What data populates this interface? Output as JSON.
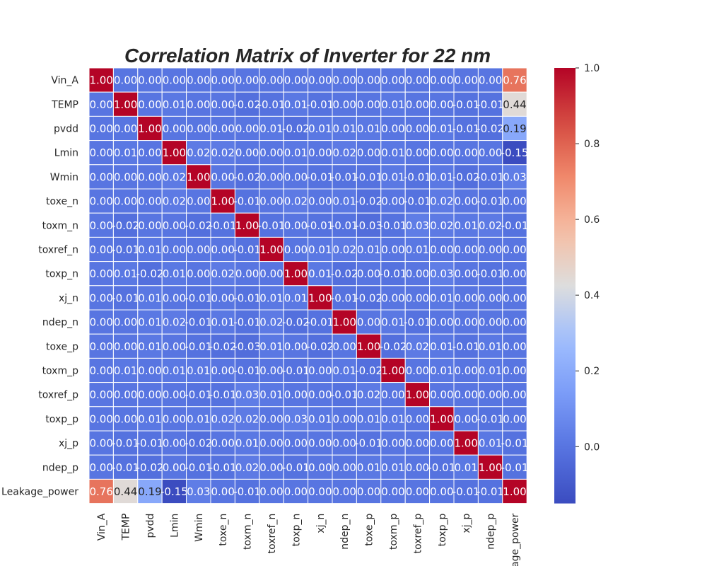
{
  "chart_data": {
    "type": "heatmap",
    "title": "Correlation Matrix of Inverter for 22 nm",
    "row_labels": [
      "Vin_A",
      "TEMP",
      "pvdd",
      "Lmin",
      "Wmin",
      "toxe_n",
      "toxm_n",
      "toxref_n",
      "toxp_n",
      "xj_n",
      "ndep_n",
      "toxe_p",
      "toxm_p",
      "toxref_p",
      "toxp_p",
      "xj_p",
      "ndep_p",
      "Leakage_power"
    ],
    "col_labels": [
      "Vin_A",
      "TEMP",
      "pvdd",
      "Lmin",
      "Wmin",
      "toxe_n",
      "toxm_n",
      "toxref_n",
      "toxp_n",
      "xj_n",
      "ndep_n",
      "toxe_p",
      "toxm_p",
      "toxref_p",
      "toxp_p",
      "xj_p",
      "ndep_p",
      "Leakage_power"
    ],
    "values": [
      [
        1.0,
        0.0,
        0.0,
        0.0,
        0.0,
        0.0,
        0.0,
        0.0,
        0.0,
        0.0,
        0.0,
        0.0,
        0.0,
        0.0,
        0.0,
        0.0,
        0.0,
        0.76
      ],
      [
        0.0,
        1.0,
        0.0,
        0.01,
        0.0,
        0.0,
        -0.02,
        -0.01,
        0.01,
        -0.01,
        0.0,
        0.0,
        0.01,
        0.0,
        0.0,
        -0.01,
        -0.01,
        0.44
      ],
      [
        0.0,
        0.0,
        1.0,
        0.0,
        0.0,
        0.0,
        0.0,
        0.01,
        -0.02,
        0.01,
        0.01,
        0.01,
        0.0,
        0.0,
        0.01,
        -0.01,
        -0.02,
        0.19
      ],
      [
        0.0,
        0.01,
        0.0,
        1.0,
        0.02,
        0.02,
        0.0,
        0.0,
        0.01,
        0.0,
        0.02,
        0.0,
        0.01,
        0.0,
        0.0,
        0.0,
        0.0,
        -0.15
      ],
      [
        0.0,
        0.0,
        0.0,
        0.02,
        1.0,
        0.0,
        -0.02,
        0.0,
        0.0,
        -0.01,
        -0.01,
        -0.01,
        0.01,
        -0.01,
        0.01,
        -0.02,
        -0.01,
        0.03
      ],
      [
        0.0,
        0.0,
        0.0,
        0.02,
        0.0,
        1.0,
        -0.01,
        0.0,
        0.02,
        0.0,
        0.01,
        -0.02,
        0.0,
        -0.01,
        0.02,
        0.0,
        -0.01,
        0.0
      ],
      [
        0.0,
        -0.02,
        0.0,
        0.0,
        -0.02,
        -0.01,
        1.0,
        -0.01,
        0.0,
        -0.01,
        -0.01,
        -0.03,
        -0.01,
        0.03,
        0.02,
        0.01,
        0.02,
        -0.01
      ],
      [
        0.0,
        -0.01,
        0.01,
        0.0,
        0.0,
        0.0,
        -0.01,
        1.0,
        0.0,
        0.01,
        0.02,
        0.01,
        0.0,
        0.01,
        0.0,
        0.0,
        0.0,
        0.0
      ],
      [
        0.0,
        0.01,
        -0.02,
        0.01,
        0.0,
        0.02,
        0.0,
        0.0,
        1.0,
        0.01,
        -0.02,
        0.0,
        -0.01,
        0.0,
        0.03,
        0.0,
        -0.01,
        0.0
      ],
      [
        0.0,
        -0.01,
        0.01,
        0.0,
        -0.01,
        0.0,
        -0.01,
        0.01,
        0.01,
        1.0,
        -0.01,
        -0.02,
        0.0,
        0.0,
        0.01,
        0.0,
        0.0,
        0.0
      ],
      [
        0.0,
        0.0,
        0.01,
        0.02,
        -0.01,
        0.01,
        -0.01,
        0.02,
        -0.02,
        -0.01,
        1.0,
        0.0,
        0.01,
        -0.01,
        0.0,
        0.0,
        0.0,
        0.0
      ],
      [
        0.0,
        0.0,
        0.01,
        0.0,
        -0.01,
        -0.02,
        -0.03,
        0.01,
        0.0,
        -0.02,
        0.0,
        1.0,
        -0.02,
        0.02,
        0.01,
        -0.01,
        0.01,
        0.0
      ],
      [
        0.0,
        0.01,
        0.0,
        0.01,
        0.01,
        0.0,
        -0.01,
        0.0,
        -0.01,
        0.0,
        0.01,
        -0.02,
        1.0,
        0.0,
        0.01,
        0.0,
        0.01,
        0.0
      ],
      [
        0.0,
        0.0,
        0.0,
        0.0,
        -0.01,
        -0.01,
        0.03,
        0.01,
        0.0,
        0.0,
        -0.01,
        0.02,
        0.0,
        1.0,
        0.0,
        0.0,
        0.0,
        0.0
      ],
      [
        0.0,
        0.0,
        0.01,
        0.0,
        0.01,
        0.02,
        0.02,
        0.0,
        0.03,
        0.01,
        0.0,
        0.01,
        0.01,
        0.0,
        1.0,
        0.0,
        -0.01,
        0.0
      ],
      [
        0.0,
        -0.01,
        -0.01,
        0.0,
        -0.02,
        0.0,
        0.01,
        0.0,
        0.0,
        0.0,
        0.0,
        -0.01,
        0.0,
        0.0,
        0.0,
        1.0,
        0.01,
        -0.01
      ],
      [
        0.0,
        -0.01,
        -0.02,
        0.0,
        -0.01,
        -0.01,
        0.02,
        0.0,
        -0.01,
        0.0,
        0.0,
        0.01,
        0.01,
        0.0,
        -0.01,
        0.01,
        1.0,
        -0.01
      ],
      [
        0.76,
        0.44,
        0.19,
        -0.15,
        0.03,
        0.0,
        -0.01,
        0.0,
        0.0,
        0.0,
        0.0,
        0.0,
        0.0,
        0.0,
        0.0,
        -0.01,
        -0.01,
        1.0
      ]
    ],
    "value_format": "2 decimals",
    "colormap": "coolwarm",
    "vmin": -0.15,
    "vmax": 1.0,
    "colorbar_ticks": [
      0.0,
      0.2,
      0.4,
      0.6,
      0.8,
      1.0
    ],
    "colorbar_tick_labels": [
      "0.0",
      "0.2",
      "0.4",
      "0.6",
      "0.8",
      "1.0"
    ],
    "grid_lines": "white",
    "colorbar_position": "right"
  }
}
